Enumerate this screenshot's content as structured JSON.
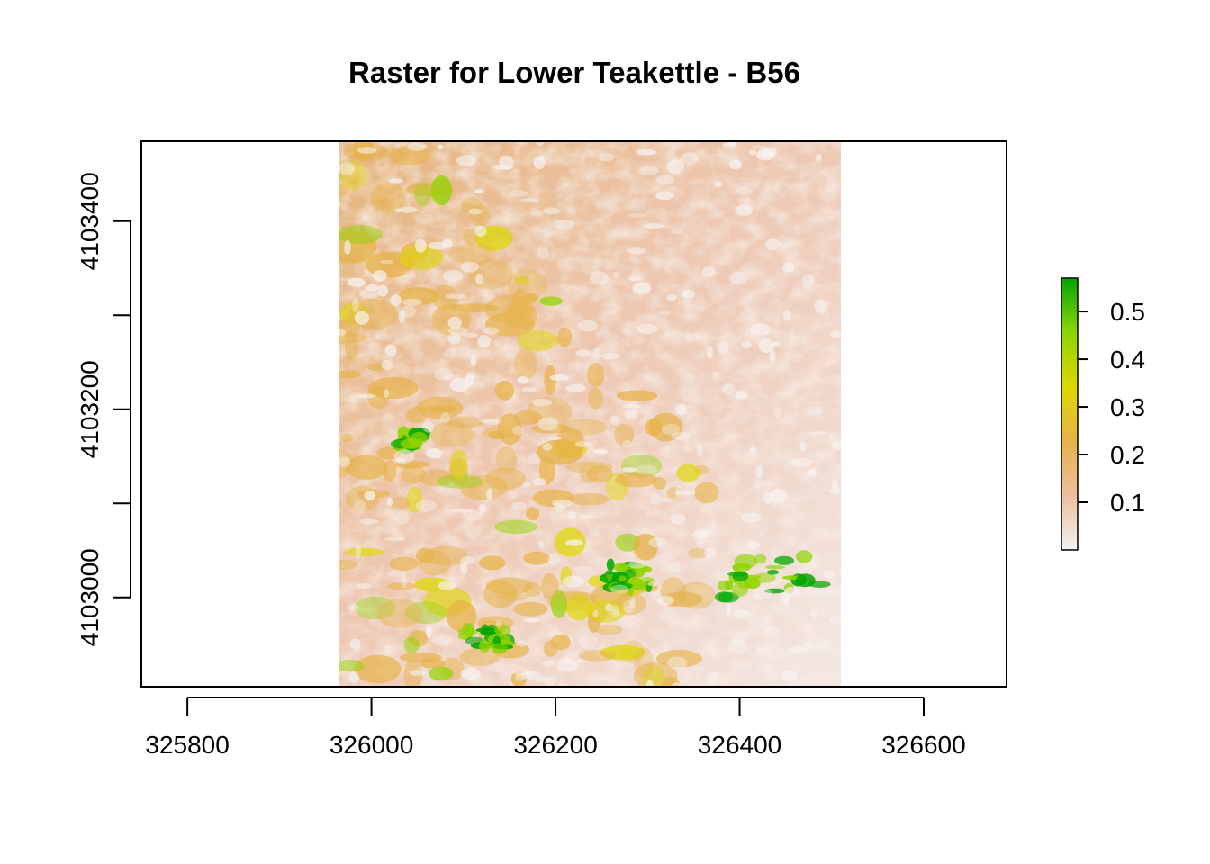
{
  "chart_data": {
    "type": "heatmap",
    "title": "Raster for Lower Teakettle - B56",
    "xlabel": "",
    "ylabel": "",
    "xlim": [
      325750,
      326690
    ],
    "ylim": [
      4102905,
      4103485
    ],
    "raster_extent": {
      "xmin": 325965,
      "xmax": 326510,
      "ymin": 4102905,
      "ymax": 4103485
    },
    "x_ticks": [
      325800,
      326000,
      326200,
      326400,
      326600
    ],
    "x_tick_labels": [
      "325800",
      "326000",
      "326200",
      "326400",
      "326600"
    ],
    "y_ticks": [
      4103000,
      4103100,
      4103200,
      4103300,
      4103400
    ],
    "y_tick_labels": [
      "4103000",
      "",
      "4103200",
      "",
      "4103400"
    ],
    "value_range": [
      0.0,
      0.57
    ],
    "colorbar": {
      "ticks": [
        0.1,
        0.2,
        0.3,
        0.4,
        0.5
      ],
      "tick_labels": [
        "0.1",
        "0.2",
        "0.3",
        "0.4",
        "0.5"
      ],
      "colors": [
        "#f2f2f2",
        "#eebd9f",
        "#e6b248",
        "#ddd700",
        "#8fd400",
        "#00a600"
      ]
    },
    "grid": false,
    "legend_placement": "right"
  }
}
